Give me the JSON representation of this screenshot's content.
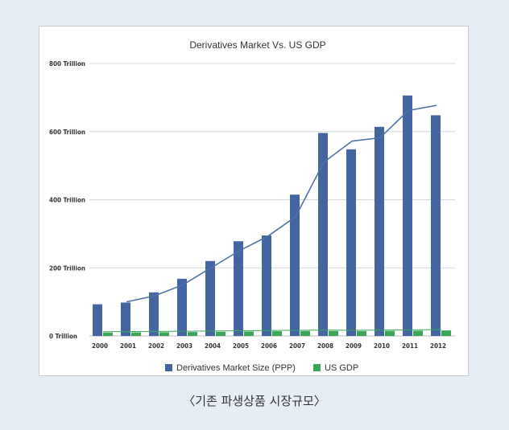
{
  "caption": "〈기존 파생상품 시장규모〉",
  "chart_data": {
    "type": "bar",
    "title": "Derivatives Market Vs. US GDP",
    "categories": [
      "2000",
      "2001",
      "2002",
      "2003",
      "2004",
      "2005",
      "2006",
      "2007",
      "2008",
      "2009",
      "2010",
      "2011",
      "2012"
    ],
    "y_ticks": [
      {
        "value": 0,
        "label": "0 Trillion"
      },
      {
        "value": 200,
        "label": "200 Trillion"
      },
      {
        "value": 400,
        "label": "400 Trillion"
      },
      {
        "value": 600,
        "label": "600 Trillion"
      },
      {
        "value": 800,
        "label": "800 Trillion"
      }
    ],
    "ylim": [
      0,
      800
    ],
    "grid": true,
    "legend_position": "bottom",
    "series": [
      {
        "name": "Derivatives Market Size (PPP)",
        "color": "#4466a0",
        "values": [
          93,
          98,
          128,
          168,
          220,
          278,
          295,
          415,
          596,
          548,
          614,
          706,
          648
        ]
      },
      {
        "name": "US GDP",
        "color": "#3aa757",
        "values": [
          10,
          10.6,
          10.9,
          11.5,
          12.3,
          13.1,
          13.9,
          14.5,
          14.7,
          14.4,
          15.0,
          15.5,
          16.2
        ]
      }
    ],
    "trendline": {
      "series": "Derivatives Market Size (PPP)",
      "color": "#4d72a8",
      "values": [
        null,
        100,
        118,
        150,
        200,
        250,
        292,
        350,
        510,
        572,
        582,
        662,
        677
      ]
    }
  }
}
